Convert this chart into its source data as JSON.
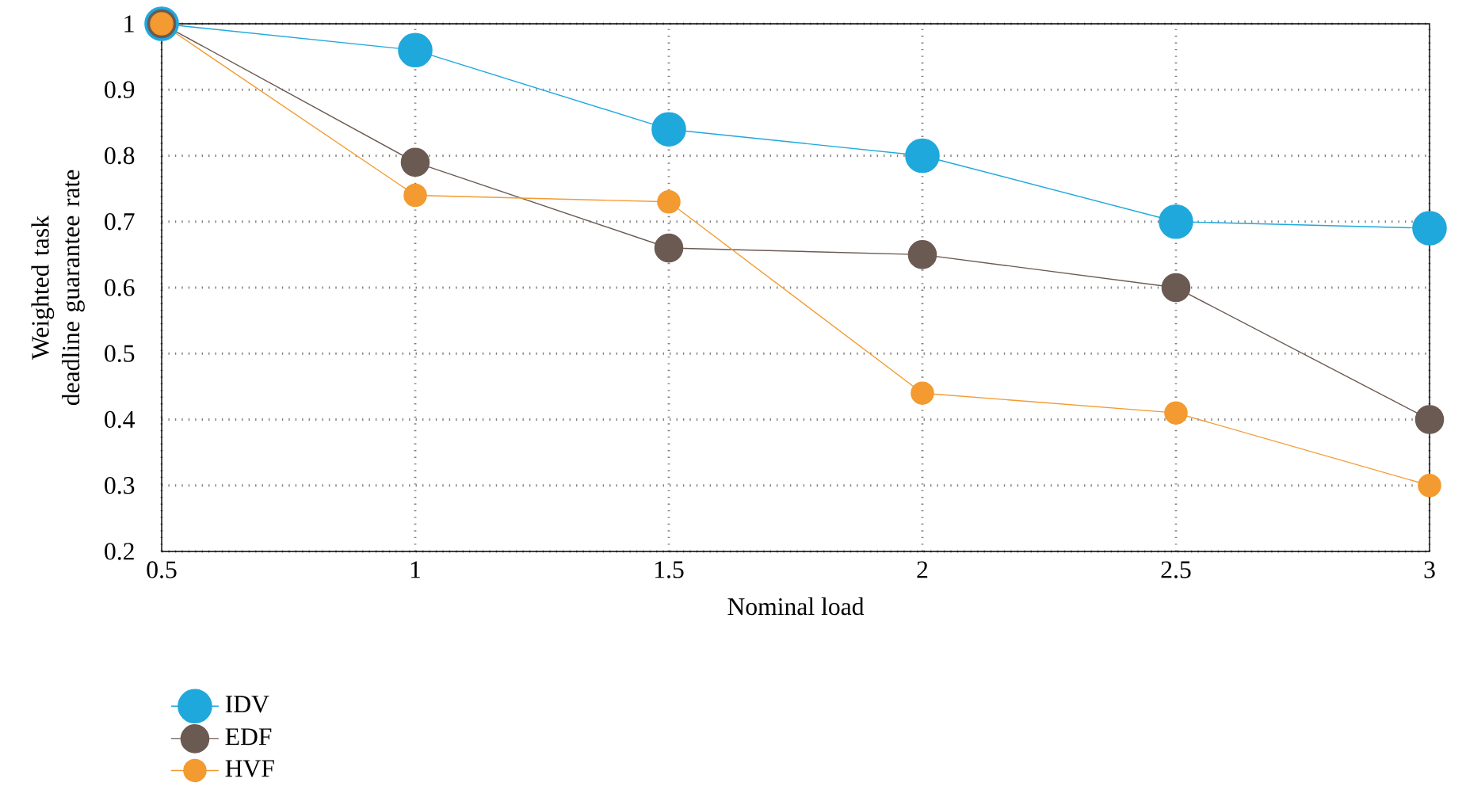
{
  "chart_data": {
    "type": "line",
    "xlabel": "Nominal load",
    "ylabel": "Weighted task deadline guarantee rate",
    "x": [
      0.5,
      1,
      1.5,
      2,
      2.5,
      3
    ],
    "series": [
      {
        "name": "IDV",
        "color": "#1fa8dc",
        "values": [
          1,
          0.96,
          0.84,
          0.8,
          0.7,
          0.69
        ]
      },
      {
        "name": "EDF",
        "color": "#6b5a52",
        "values": [
          1,
          0.79,
          0.66,
          0.65,
          0.6,
          0.4
        ]
      },
      {
        "name": "HVF",
        "color": "#f39a30",
        "values": [
          1,
          0.74,
          0.73,
          0.44,
          0.41,
          0.3
        ]
      }
    ],
    "xlim": [
      0.5,
      3
    ],
    "ylim": [
      0.2,
      1
    ],
    "xticks": [
      0.5,
      1,
      1.5,
      2,
      2.5,
      3
    ],
    "yticks": [
      0.2,
      0.3,
      0.4,
      0.5,
      0.6,
      0.7,
      0.8,
      0.9,
      1
    ],
    "grid": true,
    "legend": "bottom",
    "marker": "circle",
    "line_style": "solid"
  }
}
